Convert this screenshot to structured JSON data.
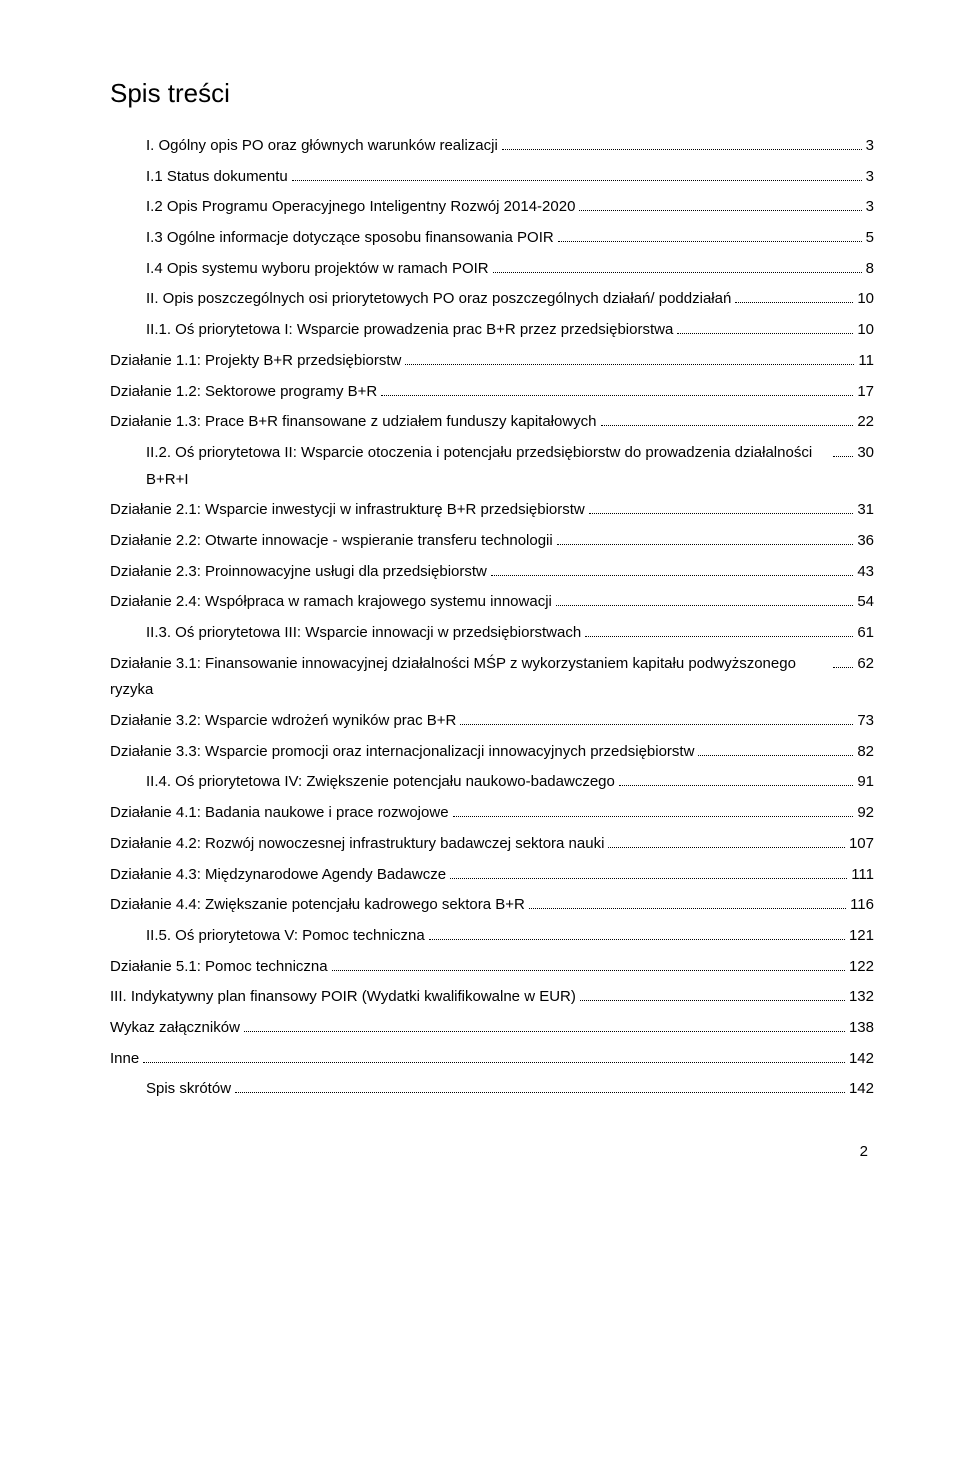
{
  "title": "Spis treści",
  "page_number": "2",
  "toc": [
    {
      "indent": 1,
      "label": "I. Ogólny opis PO oraz głównych warunków realizacji",
      "page": " 3"
    },
    {
      "indent": 1,
      "label": "I.1 Status dokumentu",
      "page": " 3"
    },
    {
      "indent": 1,
      "label": "I.2 Opis Programu Operacyjnego Inteligentny Rozwój 2014-2020",
      "page": " 3"
    },
    {
      "indent": 1,
      "label": "I.3 Ogólne informacje dotyczące sposobu finansowania POIR",
      "page": " 5"
    },
    {
      "indent": 1,
      "label": "I.4 Opis systemu wyboru projektów w ramach POIR",
      "page": " 8"
    },
    {
      "indent": 1,
      "label": "II. Opis poszczególnych osi priorytetowych PO oraz poszczególnych działań/ poddziałań",
      "page": "10"
    },
    {
      "indent": 1,
      "label": "II.1. Oś priorytetowa I: Wsparcie prowadzenia prac B+R przez przedsiębiorstwa",
      "page": "10"
    },
    {
      "indent": 0,
      "label": "Działanie 1.1: Projekty B+R przedsiębiorstw",
      "page": "11"
    },
    {
      "indent": 0,
      "label": "Działanie 1.2: Sektorowe programy B+R",
      "page": "17"
    },
    {
      "indent": 0,
      "label": "Działanie 1.3: Prace B+R finansowane z udziałem funduszy kapitałowych",
      "page": "22"
    },
    {
      "indent": 1,
      "label": "II.2. Oś priorytetowa II: Wsparcie otoczenia i potencjału przedsiębiorstw do prowadzenia działalności B+R+I",
      "page": "30"
    },
    {
      "indent": 0,
      "label": "Działanie 2.1: Wsparcie inwestycji w infrastrukturę B+R przedsiębiorstw",
      "page": "31"
    },
    {
      "indent": 0,
      "label": "Działanie 2.2: Otwarte innowacje - wspieranie transferu technologii",
      "page": "36"
    },
    {
      "indent": 0,
      "label": "Działanie 2.3: Proinnowacyjne usługi dla przedsiębiorstw",
      "page": "43"
    },
    {
      "indent": 0,
      "label": "Działanie 2.4: Współpraca w ramach krajowego systemu innowacji",
      "page": "54"
    },
    {
      "indent": 1,
      "label": "II.3. Oś priorytetowa III: Wsparcie innowacji w przedsiębiorstwach",
      "page": "61"
    },
    {
      "indent": 0,
      "label": "Działanie 3.1: Finansowanie innowacyjnej działalności MŚP z wykorzystaniem kapitału podwyższonego ryzyka",
      "page": "62",
      "justify": true
    },
    {
      "indent": 0,
      "label": "Działanie 3.2: Wsparcie wdrożeń wyników prac B+R",
      "page": "73"
    },
    {
      "indent": 0,
      "label": "Działanie 3.3: Wsparcie promocji oraz internacjonalizacji innowacyjnych przedsiębiorstw",
      "page": "82"
    },
    {
      "indent": 1,
      "label": "II.4. Oś priorytetowa IV: Zwiększenie potencjału naukowo-badawczego",
      "page": "91"
    },
    {
      "indent": 0,
      "label": "Działanie 4.1: Badania naukowe i prace rozwojowe",
      "page": "92"
    },
    {
      "indent": 0,
      "label": "Działanie 4.2: Rozwój nowoczesnej infrastruktury badawczej sektora nauki",
      "page": "107"
    },
    {
      "indent": 0,
      "label": "Działanie 4.3: Międzynarodowe Agendy Badawcze",
      "page": "111"
    },
    {
      "indent": 0,
      "label": "Działanie 4.4: Zwiększanie potencjału kadrowego sektora B+R",
      "page": "116"
    },
    {
      "indent": 1,
      "label": "II.5. Oś priorytetowa V: Pomoc techniczna",
      "page": "121"
    },
    {
      "indent": 0,
      "label": "Działanie 5.1: Pomoc techniczna",
      "page": "122"
    },
    {
      "indent": 0,
      "label": "III. Indykatywny plan finansowy POIR (Wydatki kwalifikowalne w EUR)",
      "page": "132"
    },
    {
      "indent": 0,
      "label": "Wykaz załączników",
      "page": "138"
    },
    {
      "indent": 0,
      "label": "Inne",
      "page": "142"
    },
    {
      "indent": 1,
      "label": "Spis skrótów",
      "page": "142"
    }
  ]
}
